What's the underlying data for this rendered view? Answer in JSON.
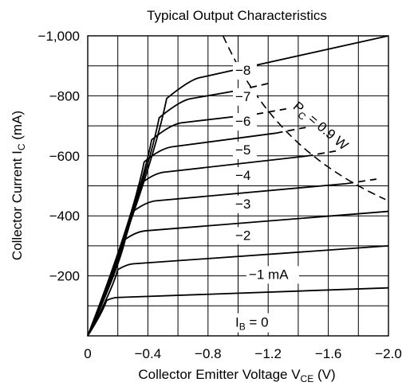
{
  "chart_data": {
    "type": "line",
    "title": "Typical Output Characteristics",
    "xlabel": {
      "main": "Collector Emitter Voltage  V",
      "sub": "CE",
      "unit": "  (V)"
    },
    "ylabel": {
      "main": "Collector Current  I",
      "sub": "C",
      "unit": "  (mA)"
    },
    "xlim": [
      0,
      -2.0
    ],
    "ylim": [
      0,
      -1000
    ],
    "grid": true,
    "x_ticks": [
      {
        "value": 0,
        "label": "0"
      },
      {
        "value": -0.4,
        "label": "−0.4"
      },
      {
        "value": -0.8,
        "label": "−0.8"
      },
      {
        "value": -1.2,
        "label": "−1.2"
      },
      {
        "value": -1.6,
        "label": "−1.6"
      },
      {
        "value": -2.0,
        "label": "−2.0"
      }
    ],
    "y_ticks": [
      {
        "value": -200,
        "label": "−200"
      },
      {
        "value": -400,
        "label": "−400"
      },
      {
        "value": -600,
        "label": "−600"
      },
      {
        "value": -800,
        "label": "−800"
      },
      {
        "value": -1000,
        "label": "−1,000"
      }
    ],
    "series": [
      {
        "name": "−1 mA",
        "ib": -1,
        "knee_x": -0.1,
        "sat_y": -128,
        "x_at_sat": -0.2,
        "y_end": -160,
        "dashed_from": null,
        "label_at": [
          -1.05,
          -190
        ]
      },
      {
        "name": "−2",
        "ib": -2,
        "knee_x": -0.16,
        "sat_y": -240,
        "x_at_sat": -0.3,
        "y_end": -300,
        "dashed_from": null,
        "label_at": [
          -0.96,
          -320
        ]
      },
      {
        "name": "−3",
        "ib": -3,
        "knee_x": -0.2,
        "sat_y": -350,
        "x_at_sat": -0.38,
        "y_end": -415,
        "dashed_from": null,
        "label_at": [
          -0.96,
          -425
        ]
      },
      {
        "name": "−4",
        "ib": -4,
        "knee_x": -0.24,
        "sat_y": -450,
        "x_at_sat": -0.45,
        "y_end": -520,
        "dashed_from": -1.72,
        "label_at": [
          -0.96,
          -520
        ]
      },
      {
        "name": "−5",
        "ib": -5,
        "knee_x": -0.27,
        "sat_y": -545,
        "x_at_sat": -0.5,
        "y_end": -630,
        "dashed_from": -1.45,
        "label_at": [
          -0.96,
          -605
        ]
      },
      {
        "name": "−6",
        "ib": -6,
        "knee_x": -0.3,
        "sat_y": -630,
        "x_at_sat": -0.56,
        "y_end": -725,
        "dashed_from": -1.25,
        "label_at": [
          -0.96,
          -700
        ]
      },
      {
        "name": "−7",
        "ib": -7,
        "knee_x": -0.34,
        "sat_y": -710,
        "x_at_sat": -0.62,
        "y_end": -790,
        "dashed_from": -1.12,
        "label_at": [
          -0.96,
          -783
        ]
      },
      {
        "name": "−8",
        "ib": -8,
        "knee_x": -0.38,
        "sat_y": -790,
        "x_at_sat": -0.68,
        "y_end": -905,
        "dashed_from": -1.0,
        "label_at": [
          -0.96,
          -870
        ]
      },
      {
        "name": "",
        "ib": -9,
        "knee_x": -0.42,
        "sat_y": -860,
        "x_at_sat": -0.74,
        "y_end": -1000,
        "dashed_from": null,
        "label_at": null
      }
    ],
    "zero_label": {
      "main": "I",
      "sub": "B",
      "rest": " = 0",
      "at": [
        -0.96,
        -30
      ]
    },
    "power_curve": {
      "label_main": "P",
      "label_sub": "C",
      "label_rest": " = 0.9 W",
      "watts": 0.9,
      "label_at": [
        -1.36,
        -760
      ]
    }
  }
}
